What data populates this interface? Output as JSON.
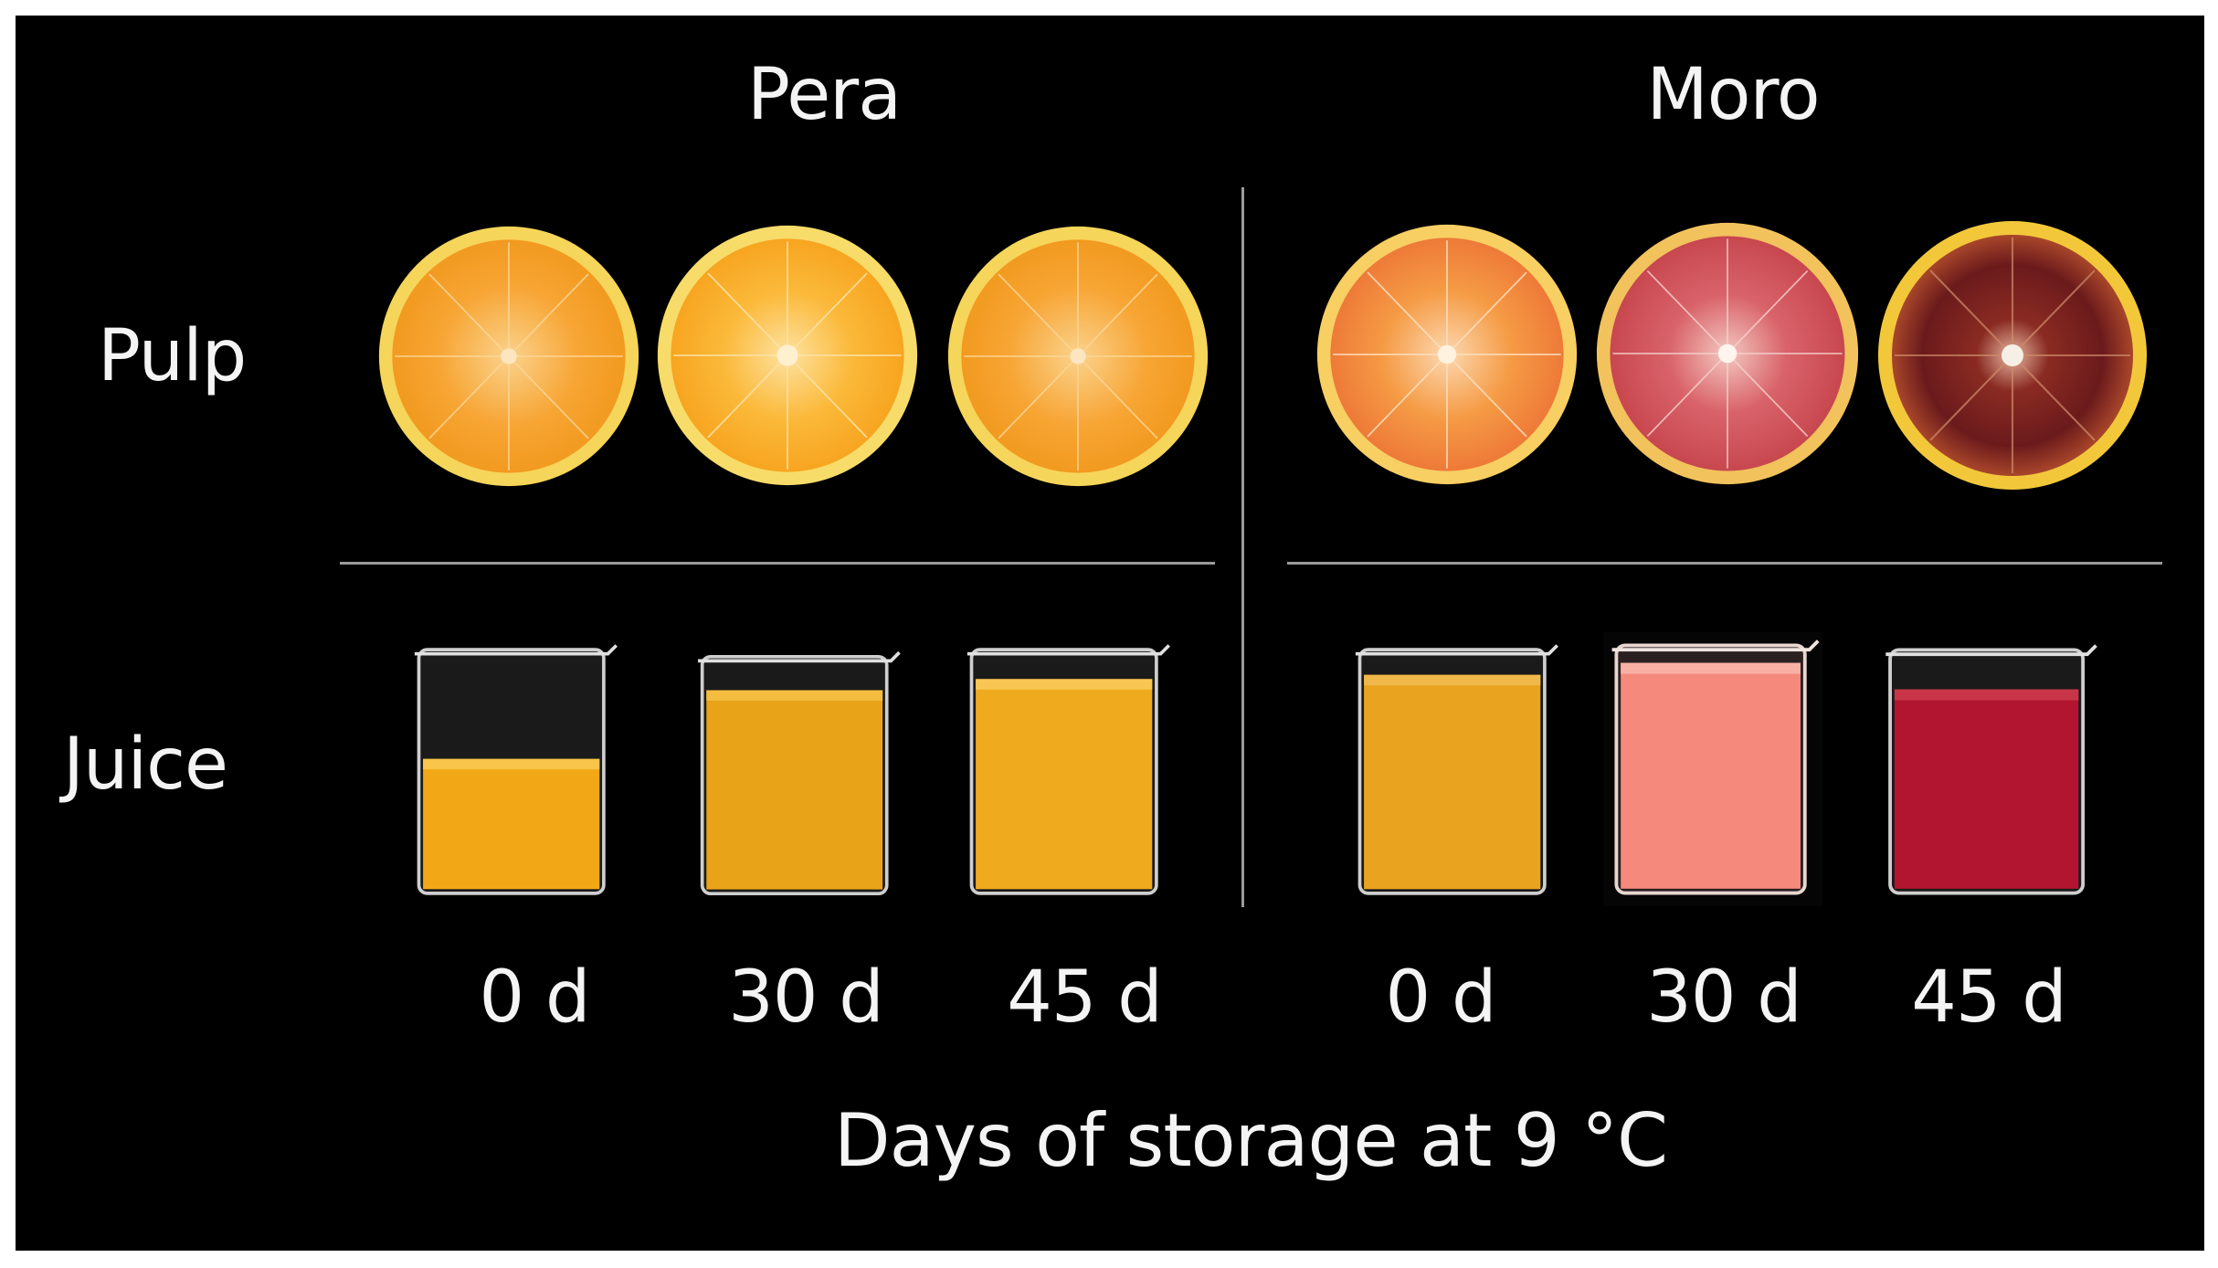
{
  "columns": [
    {
      "title": "Pera"
    },
    {
      "title": "Moro"
    }
  ],
  "rows": [
    {
      "label": "Pulp"
    },
    {
      "label": "Juice"
    }
  ],
  "days": [
    "0 d",
    "30 d",
    "45 d",
    "0 d",
    "30 d",
    "45 d"
  ],
  "x_axis_label": "Days of storage at 9 °C",
  "colors": {
    "background": "#000000",
    "text": "#f4f4f4",
    "divider": "#9a9a9a",
    "pera_pulp": "#f7a534",
    "pera_rind": "#f5d55a",
    "moro_0d_pulp": "#f59b45",
    "moro_30d_pulp": "#d9636a",
    "moro_45d_pulp": "#6b1a1c",
    "pera_juice": "#f2a816",
    "moro_0d_juice": "#e9a31f",
    "moro_30d_juice": "#f58a7c",
    "moro_45d_juice": "#b21530"
  }
}
